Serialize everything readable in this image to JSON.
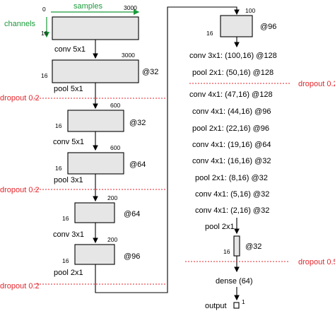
{
  "axes": {
    "origin": "0",
    "samples": "samples",
    "samples_max": "3000",
    "channels": "channels",
    "channels_val": "16"
  },
  "left": {
    "b1_w": "3000",
    "b1_h": "16",
    "op1": "conv 5x1",
    "b2_w": "3000",
    "b2_h": "16",
    "b2_ch": "@32",
    "op2": "pool 5x1",
    "drop1": "dropout 0.2",
    "b3_w": "600",
    "b3_h": "16",
    "b3_ch": "@32",
    "op3": "conv 5x1",
    "b4_w": "600",
    "b4_h": "16",
    "b4_ch": "@64",
    "op4": "pool 3x1",
    "drop2": "dropout 0.2",
    "b5_w": "200",
    "b5_h": "16",
    "b5_ch": "@64",
    "op5": "conv 3x1",
    "b6_w": "200",
    "b6_h": "16",
    "b6_ch": "@96",
    "op6": "pool 2x1",
    "drop3": "dropout 0.2"
  },
  "right": {
    "b_w": "100",
    "b_h": "16",
    "b_ch": "@96",
    "layers": [
      "conv 3x1: (100,16) @128",
      "pool 2x1: (50,16) @128",
      "conv 4x1: (47,16) @128",
      "conv 4x1: (44,16) @96",
      "pool 2x1: (22,16) @96",
      "conv 4x1: (19,16) @64",
      "conv 4x1: (16,16) @32",
      "pool 2x1: (8,16) @32",
      "conv 4x1: (5,16) @32",
      "conv 4x1: (2,16) @32",
      "pool 2x1"
    ],
    "drop1": "dropout 0.2",
    "bar_h": "16",
    "bar_ch": "@32",
    "drop2": "dropout 0.5",
    "dense": "dense (64)",
    "output": "output",
    "output_size": "1"
  },
  "colors": {
    "accent_green": "#1a9a3a",
    "dropout_red": "#e3262c",
    "block_fill": "#e6e6e6"
  }
}
